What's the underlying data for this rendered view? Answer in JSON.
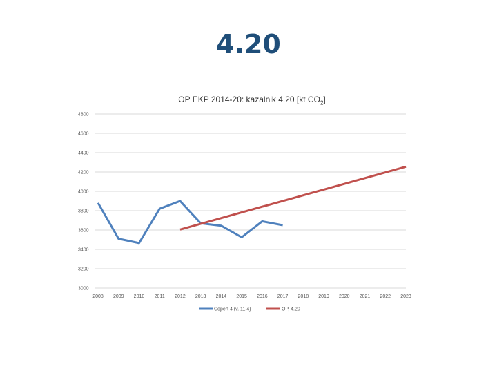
{
  "slide": {
    "title": "4.20"
  },
  "chart_data": {
    "type": "line",
    "title_main": "OP EKP 2014-20: kazalnik 4.20 [kt CO",
    "title_sub": "2",
    "title_end": "]",
    "categories": [
      "2008",
      "2009",
      "2010",
      "2011",
      "2012",
      "2013",
      "2014",
      "2015",
      "2016",
      "2017",
      "2018",
      "2019",
      "2020",
      "2021",
      "2022",
      "2023"
    ],
    "ylim": [
      3000,
      4800
    ],
    "yticks": [
      3000,
      3200,
      3400,
      3600,
      3800,
      4000,
      4200,
      4400,
      4600,
      4800
    ],
    "grid": true,
    "legend_position": "bottom",
    "series": [
      {
        "name": "Copert 4 (v. 11.4)",
        "color": "#4f81bd",
        "values": [
          3880,
          3510,
          3465,
          3820,
          3900,
          3670,
          3645,
          3525,
          3690,
          3650,
          null,
          null,
          null,
          null,
          null,
          null
        ]
      },
      {
        "name": "OP, 4.20",
        "color": "#c0504d",
        "values": [
          null,
          null,
          null,
          null,
          3605,
          null,
          null,
          null,
          null,
          null,
          null,
          null,
          null,
          null,
          null,
          4255
        ]
      }
    ]
  }
}
